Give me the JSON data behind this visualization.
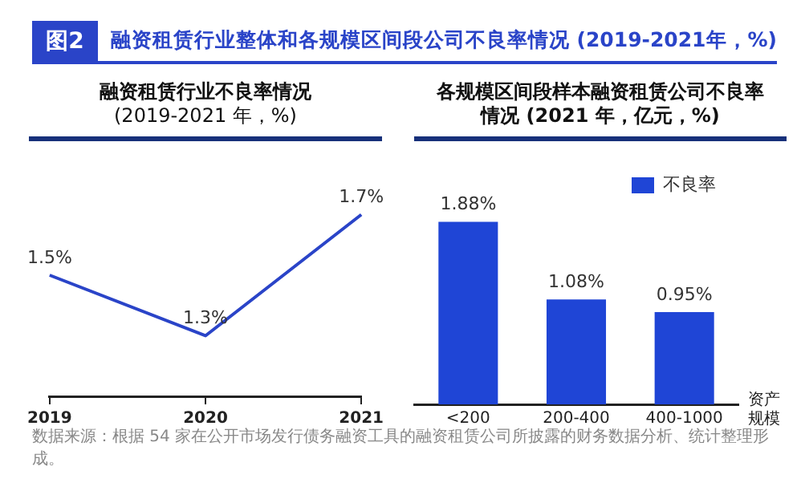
{
  "chart_data": [
    {
      "type": "other",
      "title": "图2",
      "subtitle": "融资租赁行业整体和各规模区间段公司不良率情况 (2019-2021年，%)",
      "annotations": [
        "数据来源：根据 54 家在公开市场发行债务融资工具的融资租赁公司所披露的财务数据分析、统计整理形成。"
      ]
    },
    {
      "type": "line",
      "title": "融资租赁行业不良率情况",
      "subtitle": "(2019-2021 年，%)",
      "categories": [
        "2019",
        "2020",
        "2021"
      ],
      "series": [
        {
          "color": "#2a44c8",
          "values": [
            1.5,
            1.3,
            1.7
          ],
          "value_labels": [
            "1.5%",
            "1.3%",
            "1.7%"
          ]
        }
      ],
      "marker": "none",
      "legend": false
    },
    {
      "type": "bar",
      "title": "各规模区间段样本融资租赁公司不良率情况 (2021 年，亿元，%)",
      "xlabel": "资产规模",
      "categories": [
        "<200",
        "200-400",
        "400-1000"
      ],
      "series": [
        {
          "name": "不良率",
          "color": "#1f45d6",
          "values": [
            1.88,
            1.08,
            0.95
          ],
          "value_labels": [
            "1.88%",
            "1.08%",
            "0.95%"
          ]
        }
      ],
      "legend": "top right"
    }
  ]
}
